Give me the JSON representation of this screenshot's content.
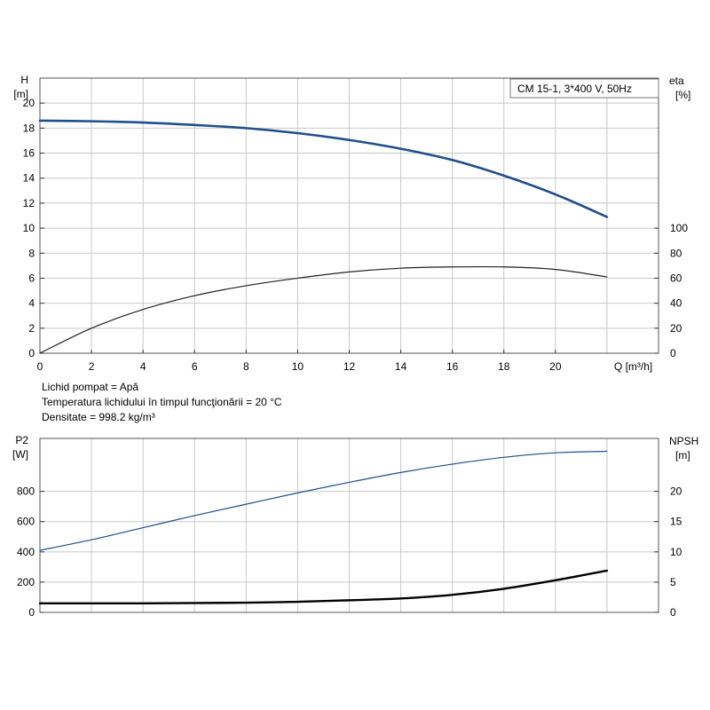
{
  "info": {
    "fluid": "Lichid pompat = Apă",
    "temperature": "Temperatura lichidului în timpul funcţionării = 20 °C",
    "density": "Densitate = 998.2 kg/m³"
  },
  "chart_data": [
    {
      "type": "line",
      "title": "CM 15-1, 3*400 V, 50Hz",
      "xlabel": "Q [m³/h]",
      "x_ticks": [
        "0",
        "2",
        "4",
        "6",
        "8",
        "10",
        "12",
        "14",
        "16",
        "18",
        "20"
      ],
      "xlim": [
        0,
        24
      ],
      "left_axis": {
        "label_top": "H",
        "label_unit": "[m]",
        "ylim": [
          0,
          22
        ],
        "ticks": [
          "0",
          "2",
          "4",
          "6",
          "8",
          "10",
          "12",
          "14",
          "16",
          "18",
          "20"
        ]
      },
      "right_axis": {
        "label_top": "eta",
        "label_unit": "[%]",
        "ylim": [
          0,
          220
        ],
        "ticks": [
          "0",
          "20",
          "40",
          "60",
          "80",
          "100"
        ]
      },
      "grid": true,
      "series": [
        {
          "name": "H",
          "axis": "left",
          "color": "#1f4e8c",
          "x": [
            0,
            2,
            4,
            6,
            8,
            10,
            12,
            14,
            16,
            18,
            20,
            22
          ],
          "y": [
            18.6,
            18.55,
            18.45,
            18.25,
            18.0,
            17.6,
            17.05,
            16.35,
            15.45,
            14.2,
            12.7,
            10.9
          ]
        },
        {
          "name": "eta",
          "axis": "right",
          "color": "#222222",
          "x": [
            0,
            2,
            4,
            6,
            8,
            10,
            12,
            14,
            16,
            18,
            20,
            22
          ],
          "y": [
            0,
            20,
            35,
            46,
            54,
            60,
            65,
            68,
            69,
            69,
            67,
            61
          ]
        }
      ]
    },
    {
      "type": "line",
      "xlim": [
        0,
        24
      ],
      "left_axis": {
        "label_top": "P2",
        "label_unit": "[W]",
        "ylim": [
          0,
          1150
        ],
        "ticks": [
          "0",
          "200",
          "400",
          "600",
          "800"
        ]
      },
      "right_axis": {
        "label_top": "NPSH",
        "label_unit": "[m]",
        "ylim": [
          0,
          28.75
        ],
        "ticks": [
          "0",
          "5",
          "10",
          "15",
          "20"
        ]
      },
      "grid": true,
      "series": [
        {
          "name": "P2",
          "axis": "left",
          "color": "#1f4e8c",
          "x": [
            0,
            2,
            4,
            6,
            8,
            10,
            12,
            14,
            16,
            18,
            20,
            22
          ],
          "y": [
            410,
            480,
            560,
            640,
            715,
            790,
            860,
            925,
            980,
            1025,
            1055,
            1065
          ]
        },
        {
          "name": "NPSH",
          "axis": "right",
          "color": "#000000",
          "x": [
            0,
            4,
            8,
            10,
            12,
            14,
            16,
            18,
            20,
            22
          ],
          "y": [
            1.5,
            1.5,
            1.6,
            1.75,
            2.0,
            2.3,
            2.9,
            3.9,
            5.3,
            6.9
          ]
        }
      ]
    }
  ]
}
